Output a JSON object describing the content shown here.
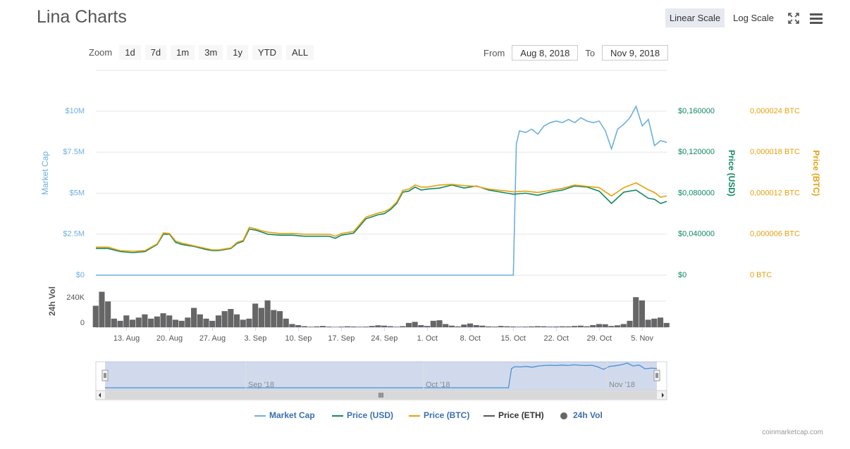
{
  "header": {
    "title": "Lina Charts",
    "linear_scale": "Linear Scale",
    "log_scale": "Log Scale"
  },
  "zoom": {
    "label": "Zoom",
    "buttons": [
      "1d",
      "7d",
      "1m",
      "3m",
      "1y",
      "YTD",
      "ALL"
    ]
  },
  "range": {
    "from_label": "From",
    "from_value": "Aug 8, 2018",
    "to_label": "To",
    "to_value": "Nov 9, 2018"
  },
  "credits": "coinmarketcap.com",
  "colors": {
    "market_cap": "#6cb0dd",
    "price_usd": "#0f8a5f",
    "price_btc": "#e8a00e",
    "price_eth": "#555555",
    "volume": "#666666",
    "axis_mcap": "#6cb0dd",
    "axis_usd": "#0f8a5f",
    "axis_btc": "#e8a00e"
  },
  "chart_data": {
    "type": "line",
    "x_start": "2018-08-08",
    "x_end": "2018-11-09",
    "x_tick_labels": [
      "13. Aug",
      "20. Aug",
      "27. Aug",
      "3. Sep",
      "10. Sep",
      "17. Sep",
      "24. Sep",
      "1. Oct",
      "8. Oct",
      "15. Oct",
      "22. Oct",
      "29. Oct",
      "5. Nov"
    ],
    "x_tick_days": [
      5,
      12,
      19,
      26,
      33,
      40,
      47,
      54,
      61,
      68,
      75,
      82,
      89
    ],
    "axes": {
      "market_cap": {
        "title": "Market Cap",
        "ticks": [
          "$0",
          "$2.5M",
          "$5M",
          "$7.5M",
          "$10M"
        ],
        "range": [
          0,
          10000000
        ]
      },
      "price_usd": {
        "title": "Price (USD)",
        "ticks": [
          "$0",
          "$0,040000",
          "$0,080000",
          "$0,120000",
          "$0,160000"
        ],
        "range": [
          0,
          0.16
        ]
      },
      "price_btc": {
        "title": "Price (BTC)",
        "ticks": [
          "0 BTC",
          "0,000006 BTC",
          "0,000012 BTC",
          "0,000018 BTC",
          "0,000024 BTC"
        ],
        "range": [
          0,
          2.4e-05
        ]
      },
      "volume": {
        "title": "24h Vol",
        "ticks": [
          "0",
          "240K"
        ],
        "range": [
          0,
          360000
        ]
      }
    },
    "series": [
      {
        "name": "Market Cap",
        "x": [
          0,
          1,
          2,
          3,
          4,
          5,
          6,
          7,
          8,
          9,
          10,
          11,
          12,
          13,
          14,
          15,
          16,
          17,
          18,
          19,
          20,
          21,
          22,
          23,
          24,
          25,
          26,
          27,
          28,
          29,
          30,
          31,
          32,
          33,
          34,
          35,
          36,
          37,
          38,
          39,
          40,
          41,
          42,
          43,
          44,
          45,
          46,
          47,
          48,
          49,
          50,
          51,
          52,
          53,
          54,
          55,
          56,
          57,
          58,
          59,
          60,
          61,
          62,
          63,
          64,
          65,
          66,
          67,
          68,
          68.5,
          69,
          70,
          71,
          72,
          73,
          74,
          75,
          76,
          77,
          78,
          79,
          80,
          81,
          82,
          83,
          84,
          85,
          86,
          87,
          88,
          89,
          90,
          91,
          92,
          93
        ],
        "values": [
          0,
          0,
          0,
          0,
          0,
          0,
          0,
          0,
          0,
          0,
          0,
          0,
          0,
          0,
          0,
          0,
          0,
          0,
          0,
          0,
          0,
          0,
          0,
          0,
          0,
          0,
          0,
          0,
          0,
          0,
          0,
          0,
          0,
          0,
          0,
          0,
          0,
          0,
          0,
          0,
          0,
          0,
          0,
          0,
          0,
          0,
          0,
          0,
          0,
          0,
          0,
          0,
          0,
          0,
          0,
          0,
          0,
          0,
          0,
          0,
          0,
          0,
          0,
          0,
          0,
          0,
          0,
          0,
          0,
          8000000,
          8800000,
          8700000,
          8900000,
          8600000,
          9100000,
          9300000,
          9400000,
          9300000,
          9500000,
          9300000,
          9600000,
          9400000,
          9300000,
          9400000,
          8800000,
          7700000,
          8900000,
          9200000,
          9600000,
          10300000,
          9100000,
          9500000,
          7900000,
          8200000,
          8100000
        ]
      },
      {
        "name": "Price (USD)",
        "x": [
          0,
          2,
          4,
          6,
          8,
          10,
          11,
          12,
          13,
          14,
          16,
          18,
          19,
          20,
          22,
          23,
          24,
          25,
          26,
          27,
          28,
          30,
          32,
          34,
          36,
          38,
          39,
          40,
          42,
          44,
          46,
          47,
          48,
          49,
          50,
          51,
          52,
          53,
          54,
          56,
          58,
          60,
          62,
          64,
          66,
          68,
          70,
          72,
          74,
          76,
          78,
          80,
          82,
          84,
          86,
          88,
          90,
          91,
          92,
          93
        ],
        "values": [
          0.026,
          0.026,
          0.023,
          0.022,
          0.023,
          0.03,
          0.04,
          0.04,
          0.032,
          0.03,
          0.028,
          0.025,
          0.024,
          0.024,
          0.026,
          0.031,
          0.033,
          0.045,
          0.044,
          0.042,
          0.04,
          0.039,
          0.039,
          0.038,
          0.038,
          0.038,
          0.036,
          0.039,
          0.041,
          0.055,
          0.059,
          0.06,
          0.064,
          0.07,
          0.081,
          0.082,
          0.086,
          0.083,
          0.084,
          0.085,
          0.088,
          0.085,
          0.087,
          0.083,
          0.081,
          0.079,
          0.08,
          0.078,
          0.081,
          0.083,
          0.087,
          0.086,
          0.082,
          0.07,
          0.081,
          0.083,
          0.075,
          0.074,
          0.07,
          0.072
        ]
      },
      {
        "name": "Price (BTC)",
        "x": [
          0,
          2,
          4,
          6,
          8,
          10,
          11,
          12,
          13,
          14,
          16,
          18,
          19,
          20,
          22,
          23,
          24,
          25,
          26,
          27,
          28,
          30,
          32,
          34,
          36,
          38,
          39,
          40,
          42,
          44,
          46,
          47,
          48,
          49,
          50,
          51,
          52,
          53,
          54,
          56,
          58,
          60,
          62,
          64,
          66,
          68,
          70,
          72,
          74,
          76,
          78,
          80,
          82,
          84,
          86,
          88,
          90,
          91,
          92,
          93
        ],
        "values": [
          4.1e-06,
          4.1e-06,
          3.6e-06,
          3.5e-06,
          3.6e-06,
          4.6e-06,
          6.2e-06,
          6.1e-06,
          5e-06,
          4.7e-06,
          4.3e-06,
          3.9e-06,
          3.7e-06,
          3.7e-06,
          4e-06,
          4.8e-06,
          5.1e-06,
          7e-06,
          6.8e-06,
          6.5e-06,
          6.3e-06,
          6.1e-06,
          6.1e-06,
          6e-06,
          6e-06,
          6e-06,
          5.7e-06,
          6.1e-06,
          6.4e-06,
          8.5e-06,
          9.1e-06,
          9.3e-06,
          9.8e-06,
          1.07e-05,
          1.24e-05,
          1.26e-05,
          1.32e-05,
          1.29e-05,
          1.29e-05,
          1.32e-05,
          1.33e-05,
          1.31e-05,
          1.3e-05,
          1.26e-05,
          1.24e-05,
          1.22e-05,
          1.23e-05,
          1.21e-05,
          1.24e-05,
          1.27e-05,
          1.32e-05,
          1.3e-05,
          1.28e-05,
          1.16e-05,
          1.28e-05,
          1.35e-05,
          1.25e-05,
          1.21e-05,
          1.14e-05,
          1.16e-05
        ]
      },
      {
        "name": "Price (ETH)",
        "x": [],
        "values": []
      },
      {
        "name": "24h Vol",
        "x": [
          0,
          1,
          2,
          3,
          4,
          5,
          6,
          7,
          8,
          9,
          10,
          11,
          12,
          13,
          14,
          15,
          16,
          17,
          18,
          19,
          20,
          21,
          22,
          23,
          24,
          25,
          26,
          27,
          28,
          29,
          30,
          31,
          32,
          33,
          34,
          35,
          36,
          37,
          38,
          39,
          40,
          41,
          42,
          43,
          44,
          45,
          46,
          47,
          48,
          49,
          50,
          51,
          52,
          53,
          54,
          55,
          56,
          57,
          58,
          59,
          60,
          61,
          62,
          63,
          64,
          65,
          66,
          67,
          68,
          69,
          70,
          71,
          72,
          73,
          74,
          75,
          76,
          77,
          78,
          79,
          80,
          81,
          82,
          83,
          84,
          85,
          86,
          87,
          88,
          89,
          90,
          91,
          92,
          93
        ],
        "values": [
          200000,
          330000,
          240000,
          80000,
          60000,
          110000,
          70000,
          90000,
          120000,
          80000,
          100000,
          130000,
          110000,
          70000,
          60000,
          90000,
          180000,
          120000,
          80000,
          60000,
          110000,
          150000,
          170000,
          120000,
          70000,
          80000,
          220000,
          180000,
          250000,
          160000,
          150000,
          80000,
          30000,
          20000,
          10000,
          5000,
          8000,
          12000,
          6000,
          4000,
          6000,
          9000,
          7000,
          5000,
          6000,
          12000,
          18000,
          15000,
          10000,
          5000,
          10000,
          40000,
          50000,
          20000,
          12000,
          60000,
          65000,
          30000,
          15000,
          8000,
          25000,
          35000,
          20000,
          15000,
          8000,
          6000,
          12000,
          9000,
          7000,
          5000,
          6000,
          8000,
          10000,
          9000,
          6000,
          7000,
          9000,
          8000,
          12000,
          15000,
          9000,
          20000,
          30000,
          28000,
          12000,
          18000,
          30000,
          60000,
          280000,
          250000,
          70000,
          80000,
          90000,
          40000
        ]
      }
    ],
    "legend": [
      "Market Cap",
      "Price (USD)",
      "Price (BTC)",
      "Price (ETH)",
      "24h Vol"
    ],
    "navigator_labels": [
      "Sep '18",
      "Oct '18",
      "Nov '18"
    ],
    "legend_position": "bottom",
    "grid": true
  }
}
